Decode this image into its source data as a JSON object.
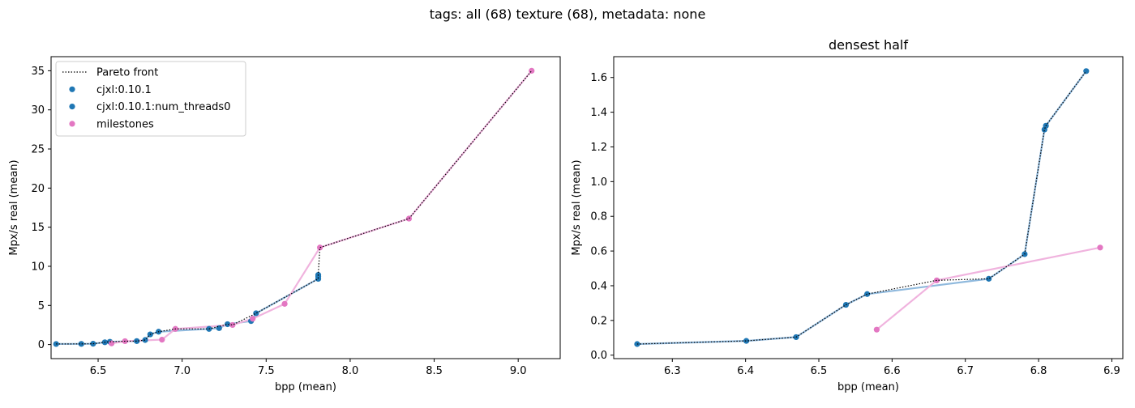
{
  "suptitle": "tags: all (68) texture (68), metadata: none",
  "colors": {
    "pareto": "#000000",
    "series_cjxl": "#1f77b4",
    "series_cjxl_line": "#8fb9dd",
    "milestones": "#e377c2",
    "milestones_line": "#f0b3de"
  },
  "chart_data": [
    {
      "type": "scatter",
      "title": "",
      "xlabel": "bpp (mean)",
      "ylabel": "Mpx/s real (mean)",
      "xlim": [
        6.22,
        9.25
      ],
      "ylim": [
        -1.8,
        36.8
      ],
      "xticks": [
        6.5,
        7.0,
        7.5,
        8.0,
        8.5,
        9.0
      ],
      "xtick_labels": [
        "6.5",
        "7.0",
        "7.5",
        "8.0",
        "8.5",
        "9.0"
      ],
      "yticks": [
        0,
        5,
        10,
        15,
        20,
        25,
        30,
        35
      ],
      "ytick_labels": [
        "0",
        "5",
        "10",
        "15",
        "20",
        "25",
        "30",
        "35"
      ],
      "grid": false,
      "legend": {
        "position": "top-left",
        "entries": [
          "Pareto front",
          "cjxl:0.10.1",
          "cjxl:0.10.1:num_threads0",
          "milestones"
        ]
      },
      "series": [
        {
          "name": "cjxl:0.10.1",
          "x": [
            6.25,
            6.4,
            6.47,
            6.54,
            6.57,
            6.73,
            6.78,
            6.81,
            6.86,
            7.16,
            7.22,
            7.27,
            7.41,
            7.44,
            7.81,
            7.81,
            7.81
          ],
          "y": [
            0.07,
            0.08,
            0.1,
            0.29,
            0.35,
            0.44,
            0.58,
            1.3,
            1.64,
            2.0,
            2.1,
            2.6,
            3.0,
            4.0,
            8.4,
            8.7,
            8.9
          ]
        },
        {
          "name": "cjxl:0.10.1:num_threads0",
          "x": [
            6.25,
            6.4,
            6.47,
            6.54,
            6.57,
            6.73,
            6.78,
            6.81,
            6.86,
            7.16,
            7.22,
            7.27,
            7.41,
            7.44,
            7.81,
            7.81,
            7.81
          ],
          "y": [
            0.07,
            0.08,
            0.1,
            0.29,
            0.35,
            0.44,
            0.58,
            1.3,
            1.64,
            2.0,
            2.1,
            2.6,
            3.0,
            4.0,
            8.4,
            8.7,
            8.9
          ]
        },
        {
          "name": "milestones",
          "x": [
            6.58,
            6.66,
            6.88,
            6.96,
            7.3,
            7.42,
            7.61,
            7.82,
            8.35,
            9.08
          ],
          "y": [
            0.15,
            0.43,
            0.62,
            2.0,
            2.5,
            3.3,
            5.2,
            12.4,
            16.1,
            35.0
          ]
        }
      ],
      "pareto_front": {
        "name": "Pareto front",
        "x": [
          6.25,
          6.4,
          6.47,
          6.54,
          6.57,
          6.66,
          6.73,
          6.78,
          6.81,
          6.86,
          6.96,
          7.16,
          7.27,
          7.3,
          7.44,
          7.81,
          7.81,
          7.82,
          8.35,
          9.08
        ],
        "y": [
          0.07,
          0.08,
          0.1,
          0.29,
          0.35,
          0.43,
          0.44,
          0.58,
          1.3,
          1.64,
          2.0,
          2.0,
          2.6,
          2.5,
          4.0,
          8.4,
          8.9,
          12.4,
          16.1,
          35.0
        ]
      }
    },
    {
      "type": "scatter",
      "title": "densest half",
      "xlabel": "bpp (mean)",
      "ylabel": "Mpx/s real (mean)",
      "xlim": [
        6.22,
        6.915
      ],
      "ylim": [
        -0.02,
        1.72
      ],
      "xticks": [
        6.3,
        6.4,
        6.5,
        6.6,
        6.7,
        6.8,
        6.9
      ],
      "xtick_labels": [
        "6.3",
        "6.4",
        "6.5",
        "6.6",
        "6.7",
        "6.8",
        "6.9"
      ],
      "yticks": [
        0.0,
        0.2,
        0.4,
        0.6,
        0.8,
        1.0,
        1.2,
        1.4,
        1.6
      ],
      "ytick_labels": [
        "0.0",
        "0.2",
        "0.4",
        "0.6",
        "0.8",
        "1.0",
        "1.2",
        "1.4",
        "1.6"
      ],
      "grid": false,
      "series": [
        {
          "name": "cjxl:0.10.1",
          "x": [
            6.252,
            6.401,
            6.469,
            6.537,
            6.566,
            6.732,
            6.781,
            6.808,
            6.81,
            6.865
          ],
          "y": [
            0.064,
            0.082,
            0.104,
            0.29,
            0.352,
            0.44,
            0.582,
            1.3,
            1.322,
            1.637
          ]
        },
        {
          "name": "cjxl:0.10.1:num_threads0",
          "x": [
            6.252,
            6.401,
            6.469,
            6.537,
            6.566,
            6.732,
            6.781,
            6.808,
            6.81,
            6.865
          ],
          "y": [
            0.064,
            0.082,
            0.104,
            0.29,
            0.352,
            0.44,
            0.582,
            1.3,
            1.322,
            1.637
          ]
        },
        {
          "name": "milestones",
          "x": [
            6.579,
            6.661,
            6.884
          ],
          "y": [
            0.147,
            0.431,
            0.62
          ]
        }
      ],
      "pareto_front": {
        "name": "Pareto front",
        "x": [
          6.252,
          6.401,
          6.469,
          6.537,
          6.566,
          6.661,
          6.732,
          6.781,
          6.808,
          6.81,
          6.865
        ],
        "y": [
          0.064,
          0.082,
          0.104,
          0.29,
          0.352,
          0.431,
          0.44,
          0.582,
          1.3,
          1.322,
          1.637
        ]
      }
    }
  ]
}
